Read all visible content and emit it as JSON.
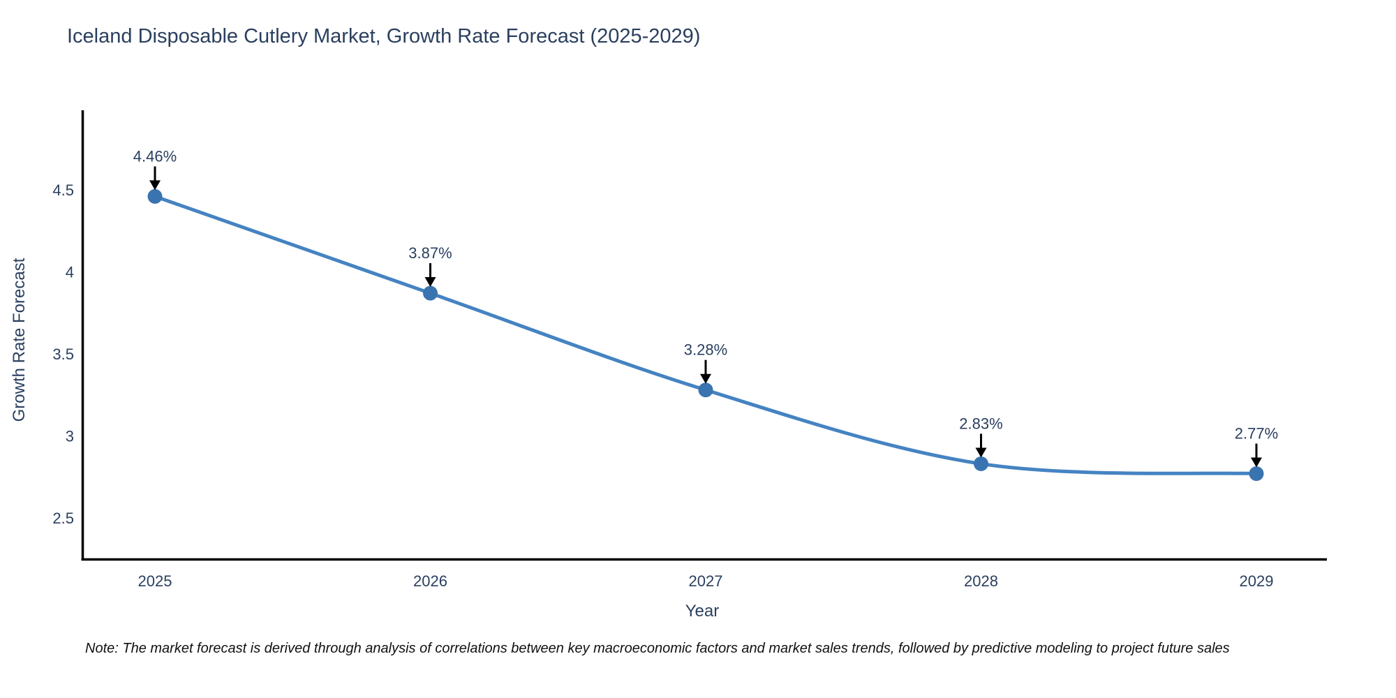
{
  "page": {
    "background_color": "#ffffff"
  },
  "note": "Note: The market forecast is derived through analysis of correlations between key macroeconomic factors and market sales trends, followed by predictive modeling to project future sales",
  "chart_data": {
    "type": "line",
    "title": "Iceland Disposable Cutlery Market, Growth Rate Forecast (2025-2029)",
    "xlabel": "Year",
    "ylabel": "Growth Rate Forecast",
    "categories": [
      "2025",
      "2026",
      "2027",
      "2028",
      "2029"
    ],
    "series": [
      {
        "name": "Growth Rate Forecast",
        "values": [
          4.46,
          3.87,
          3.28,
          2.83,
          2.77
        ],
        "point_labels": [
          "4.46%",
          "3.87%",
          "3.28%",
          "2.83%",
          "2.77%"
        ]
      }
    ],
    "yticks": [
      4.5,
      4.0,
      3.5,
      3.0,
      2.5
    ],
    "ytick_labels": [
      "4.5",
      "4",
      "3.5",
      "3",
      "2.5"
    ],
    "ylim": [
      2.24,
      4.99
    ],
    "line_shape": "spline",
    "grid": false,
    "legend_position": "none",
    "annotations_have_arrows": true,
    "colors": {
      "line": "#4583c2",
      "marker": "#3a74b0",
      "arrow": "#000000",
      "axis_line": "#000000",
      "tick_text": "#2a3f5f",
      "title_text": "#2a3f5f",
      "note_text": "#111111"
    }
  }
}
